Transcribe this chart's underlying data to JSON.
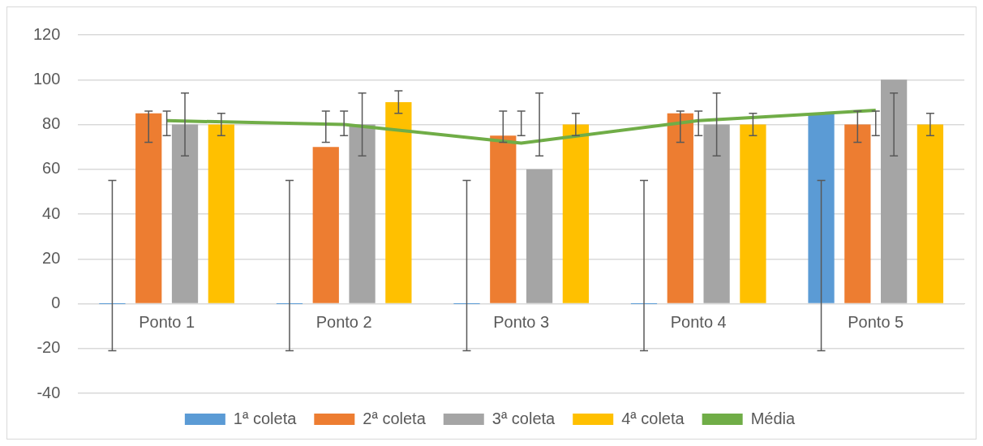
{
  "chart_data": {
    "type": "bar",
    "categories": [
      "Ponto 1",
      "Ponto 2",
      "Ponto 3",
      "Ponto 4",
      "Ponto 5"
    ],
    "series": [
      {
        "name": "1ª coleta",
        "color": "#5b9bd5",
        "values": [
          0,
          0,
          0,
          0,
          85
        ],
        "errors": [
          [
            -21,
            55
          ],
          [
            -21,
            55
          ],
          [
            -21,
            55
          ],
          [
            -21,
            55
          ],
          [
            -21,
            55
          ]
        ]
      },
      {
        "name": "2ª coleta",
        "color": "#ed7d31",
        "values": [
          85,
          70,
          75,
          85,
          80
        ],
        "errors": [
          [
            72,
            86
          ],
          [
            72,
            86
          ],
          [
            72,
            86
          ],
          [
            72,
            86
          ],
          [
            72,
            86
          ]
        ]
      },
      {
        "name": "3ª coleta",
        "color": "#a5a5a5",
        "values": [
          80,
          80,
          60,
          80,
          100
        ],
        "errors": [
          [
            66,
            94
          ],
          [
            66,
            94
          ],
          [
            66,
            94
          ],
          [
            66,
            94
          ],
          [
            66,
            94
          ]
        ]
      },
      {
        "name": "4ª coleta",
        "color": "#ffc000",
        "values": [
          80,
          90,
          80,
          80,
          80
        ],
        "errors": [
          [
            75,
            85
          ],
          [
            85,
            95
          ],
          [
            75,
            85
          ],
          [
            75,
            85
          ],
          [
            75,
            85
          ]
        ]
      },
      {
        "name": "Média",
        "type": "line",
        "color": "#70ad47",
        "values": [
          81.7,
          80,
          71.7,
          81.7,
          86.3
        ],
        "errors": [
          [
            75,
            86
          ],
          [
            75,
            86
          ],
          [
            75,
            86
          ],
          [
            75,
            86
          ],
          [
            75,
            86
          ]
        ]
      }
    ],
    "ylim": [
      -40,
      120
    ],
    "yticks": [
      -40,
      -20,
      0,
      20,
      40,
      60,
      80,
      100,
      120
    ],
    "grid": "y",
    "legend": "bottom",
    "marker": "none"
  }
}
